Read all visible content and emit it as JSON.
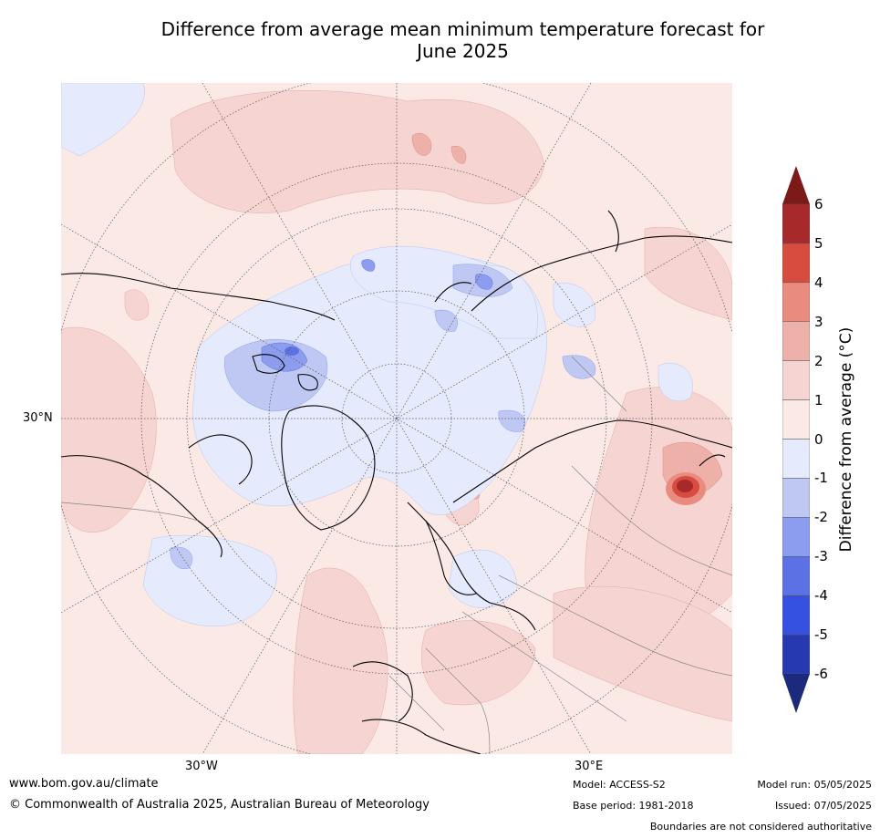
{
  "title": {
    "line1": "Difference from average mean minimum temperature forecast for",
    "line2": "June 2025"
  },
  "map": {
    "projection": "north-polar-stereographic",
    "region": "Northern Hemisphere",
    "latitude_labels": [
      "30°N"
    ],
    "longitude_labels": [
      "30°W",
      "30°E"
    ],
    "background_color": "#fbe9e6"
  },
  "colorbar": {
    "title": "Difference from average (°C)",
    "ticks": [
      "6",
      "5",
      "4",
      "3",
      "2",
      "1",
      "0",
      "-1",
      "-2",
      "-3",
      "-4",
      "-5",
      "-6"
    ],
    "bins": [
      {
        "range": ">6",
        "color": "#7b1a18"
      },
      {
        "range": "5 to 6",
        "color": "#a8292a"
      },
      {
        "range": "4 to 5",
        "color": "#d84b3f"
      },
      {
        "range": "3 to 4",
        "color": "#e98b7f"
      },
      {
        "range": "2 to 3",
        "color": "#eeb1aa"
      },
      {
        "range": "1 to 2",
        "color": "#f6d4d1"
      },
      {
        "range": "0 to 1",
        "color": "#fbe9e6"
      },
      {
        "range": "-1 to 0",
        "color": "#e5eafc"
      },
      {
        "range": "-2 to -1",
        "color": "#bfc8f3"
      },
      {
        "range": "-3 to -2",
        "color": "#8c9cee"
      },
      {
        "range": "-4 to -3",
        "color": "#5c71e3"
      },
      {
        "range": "-5 to -4",
        "color": "#3451e0"
      },
      {
        "range": "-6 to -5",
        "color": "#2639b0"
      },
      {
        "range": "<-6",
        "color": "#1c2a7c"
      }
    ]
  },
  "footer": {
    "url": "www.bom.gov.au/climate",
    "copyright": "© Commonwealth of Australia 2025, Australian Bureau of Meteorology",
    "model": "Model: ACCESS-S2",
    "base_period": "Base period: 1981-2018",
    "model_run": "Model run: 05/05/2025",
    "issued": "Issued: 07/05/2025",
    "disclaimer": "Boundaries are not considered authoritative"
  }
}
